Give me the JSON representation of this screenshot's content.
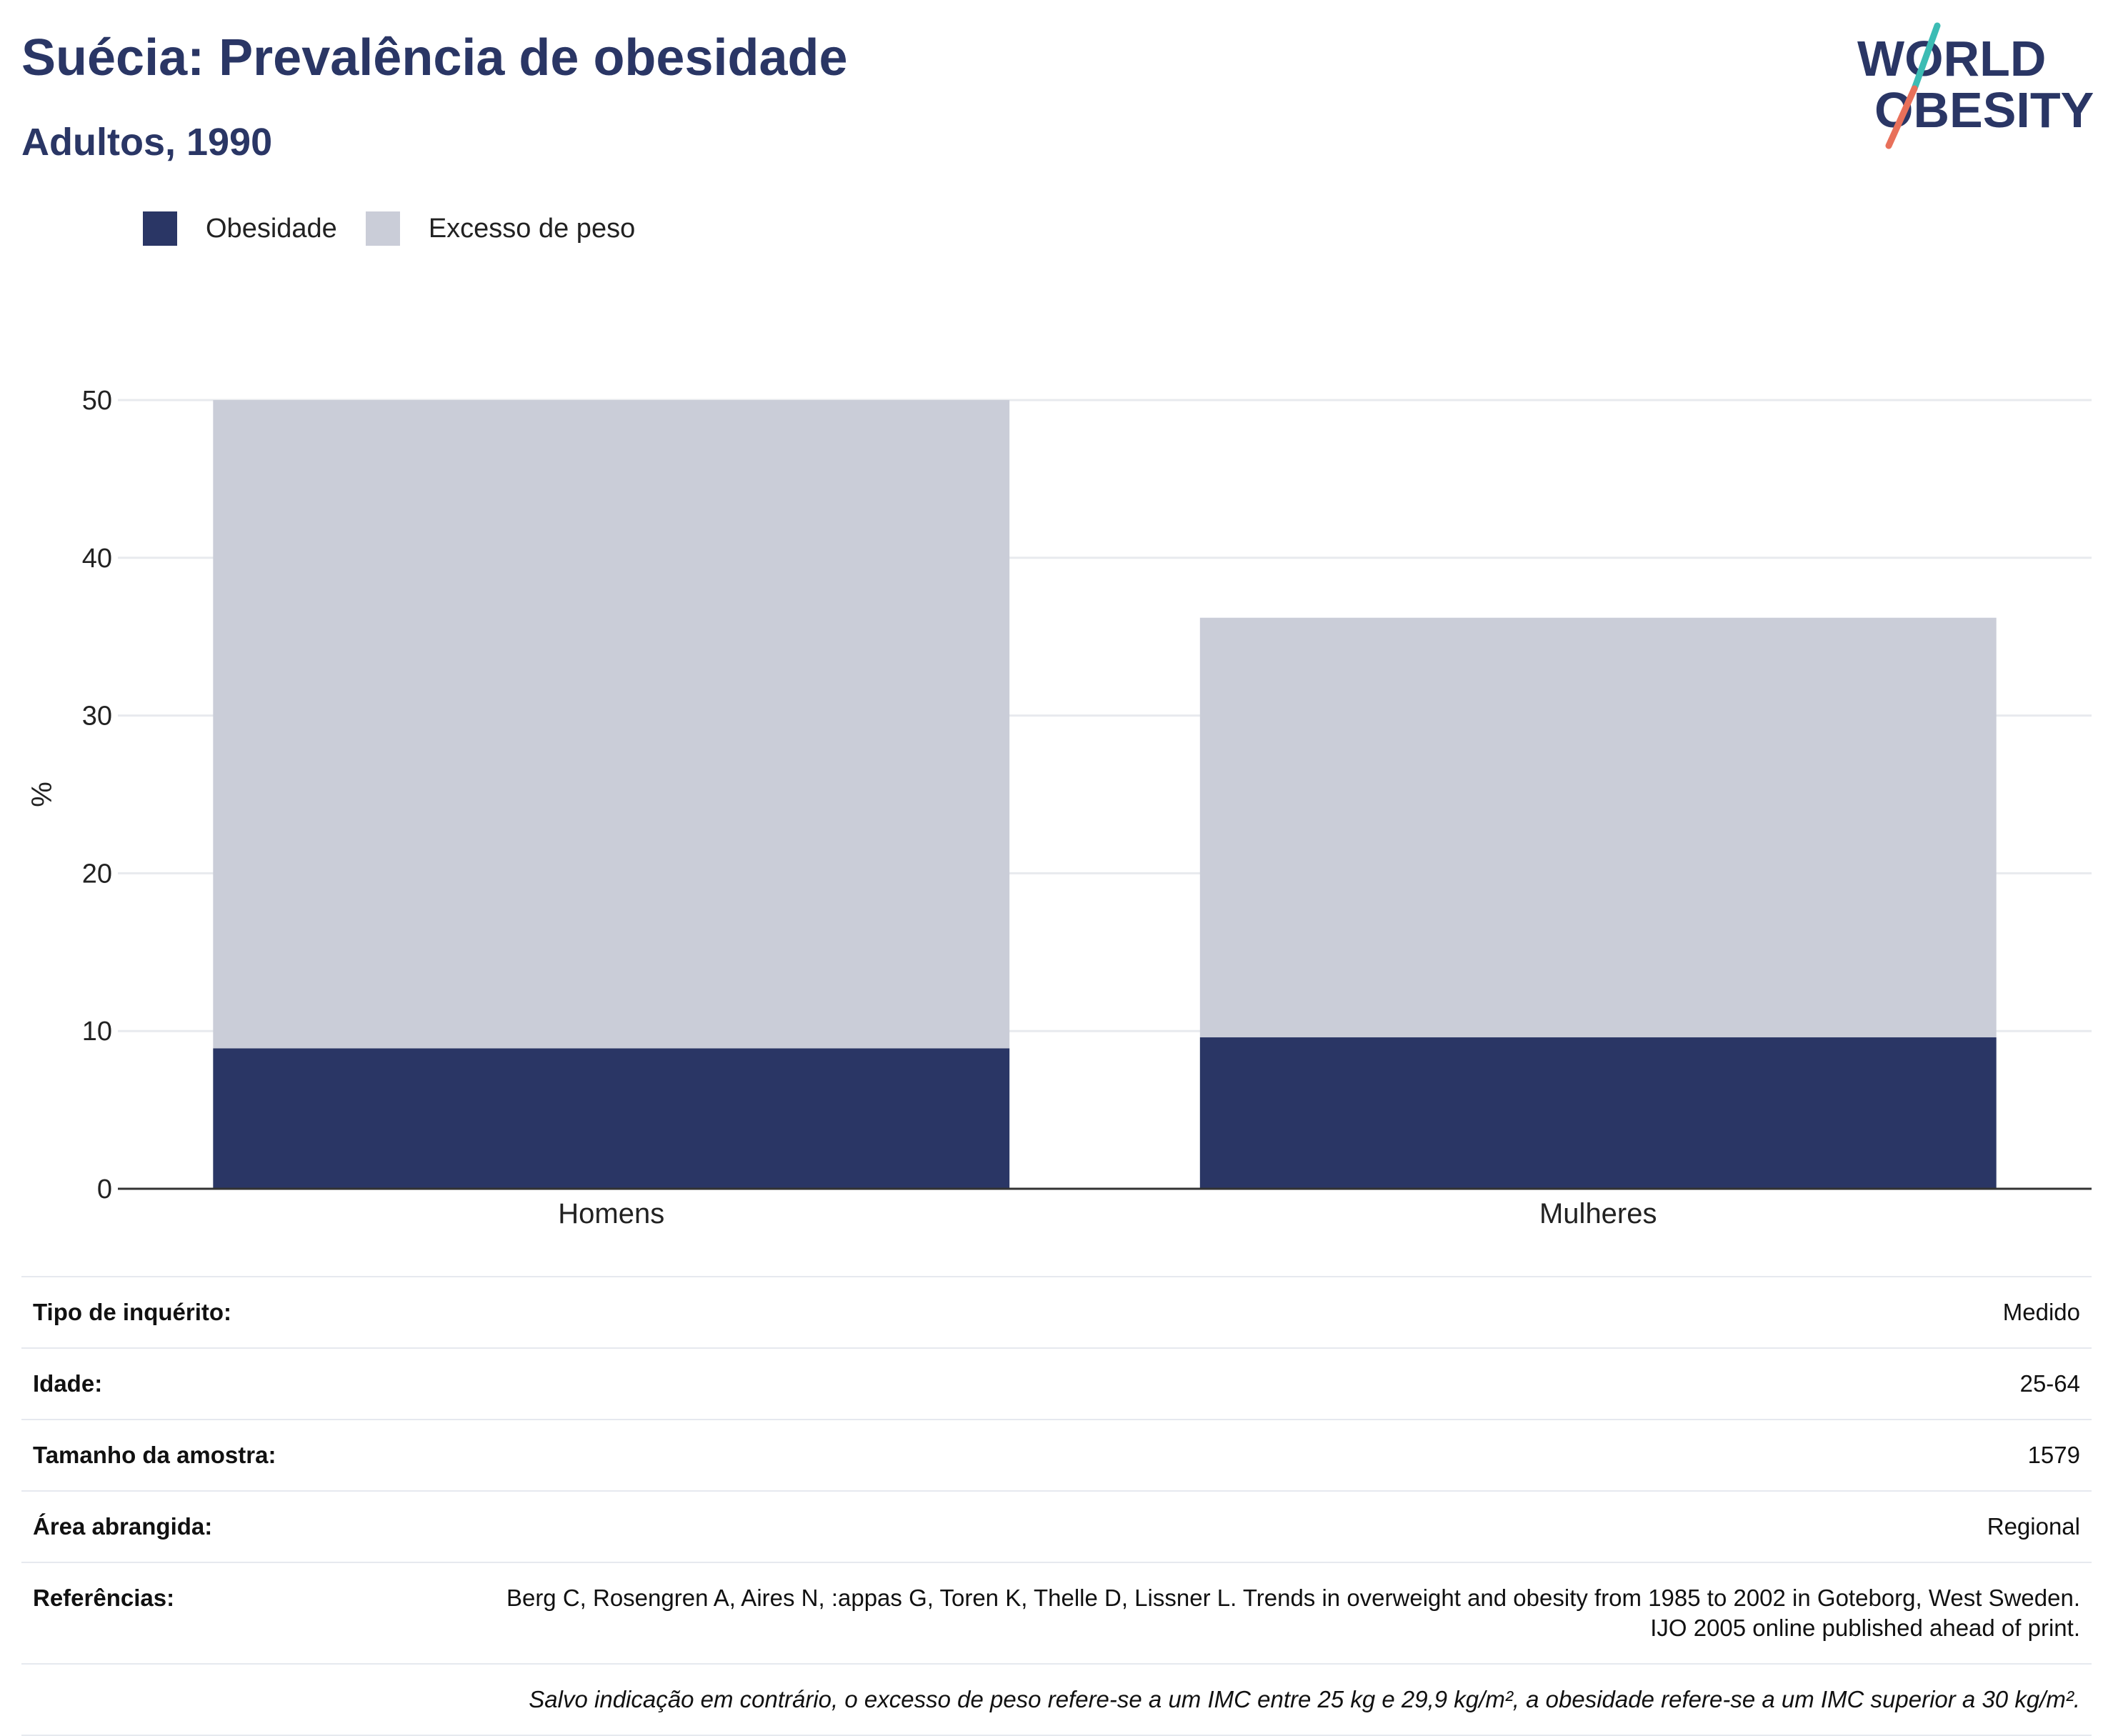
{
  "header": {
    "title": "Suécia: Prevalência de obesidade",
    "subtitle": "Adultos, 1990"
  },
  "logo": {
    "line1": "WORLD",
    "line2": "OBESITY",
    "colors": {
      "text": "#2a3665",
      "slash_teal": "#3cbcb4",
      "slash_coral": "#e8705a"
    }
  },
  "colors": {
    "obesity": "#2a3665",
    "overweight": "#cacdd8",
    "grid": "#e8eaee",
    "axis": "#333333",
    "title": "#2a3665"
  },
  "chart_data": {
    "type": "bar",
    "stacked": true,
    "categories": [
      "Homens",
      "Mulheres"
    ],
    "series": [
      {
        "name": "Obesidade",
        "color": "#2a3665",
        "values": [
          8.9,
          9.6
        ]
      },
      {
        "name": "Excesso de peso",
        "color": "#cacdd8",
        "values": [
          41.1,
          26.6
        ]
      }
    ],
    "ylabel": "%",
    "ylim": [
      0,
      50
    ],
    "yticks": [
      0,
      10,
      20,
      30,
      40,
      50
    ],
    "grid": true,
    "legend_position": "top-left"
  },
  "details": [
    {
      "label": "Tipo de inquérito:",
      "value": "Medido"
    },
    {
      "label": "Idade:",
      "value": "25-64"
    },
    {
      "label": "Tamanho da amostra:",
      "value": "1579"
    },
    {
      "label": "Área abrangida:",
      "value": "Regional"
    },
    {
      "label": "Referências:",
      "value": "Berg C, Rosengren A, Aires N, :appas G, Toren K, Thelle D, Lissner L. Trends in overweight and obesity from 1985 to 2002 in Goteborg, West Sweden. IJO 2005 online published ahead of print."
    }
  ],
  "footnote": "Salvo indicação em contrário, o excesso de peso refere-se a um IMC entre 25 kg e 29,9 kg/m², a obesidade refere-se a um IMC superior a 30 kg/m²."
}
